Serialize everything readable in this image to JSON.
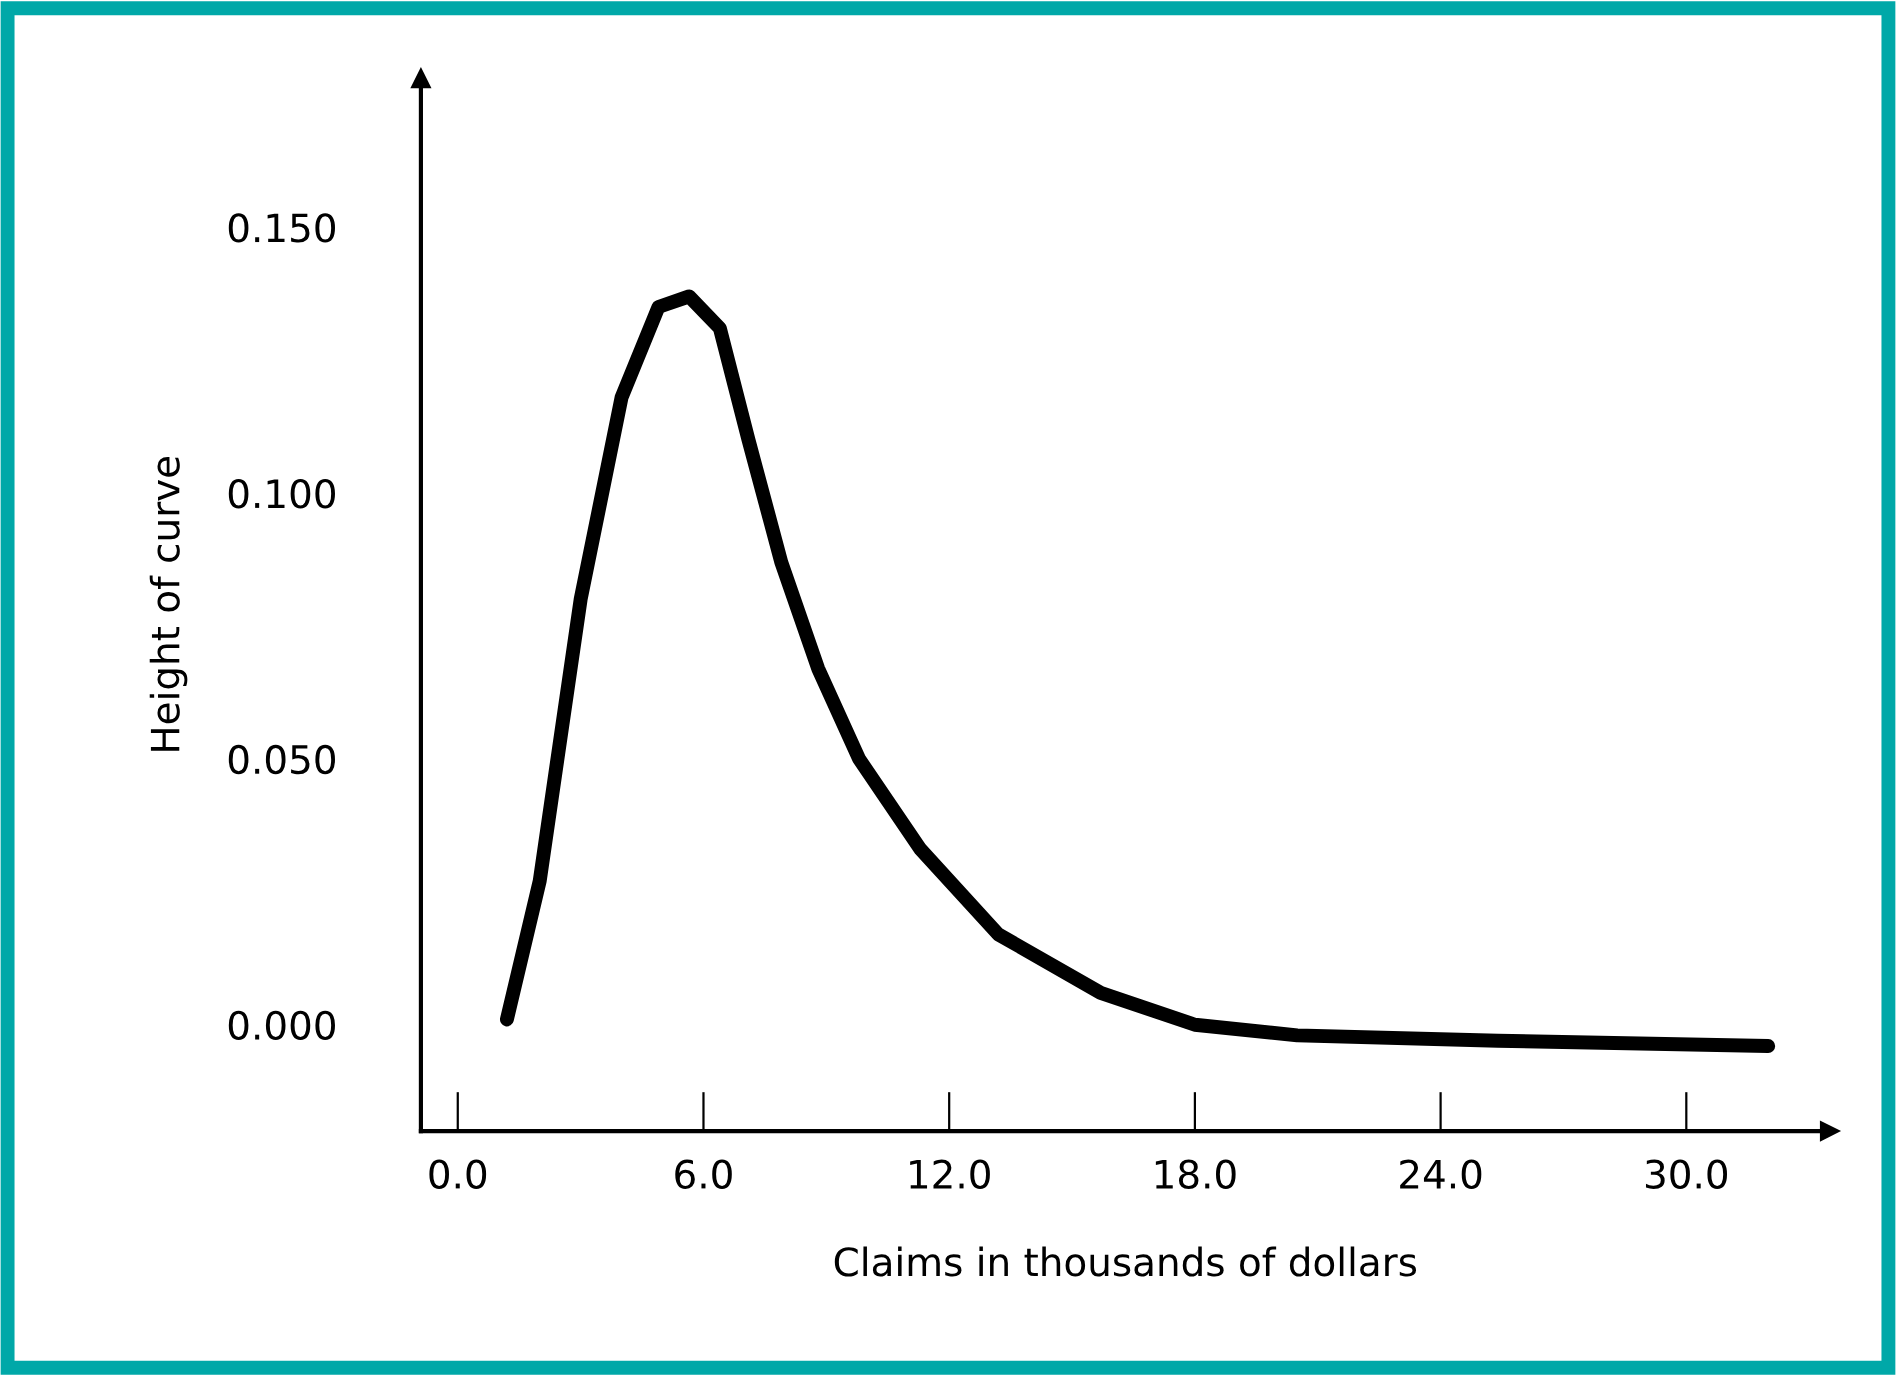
{
  "chart_data": {
    "type": "line",
    "xlabel": "Claims in thousands of dollars",
    "ylabel": "Height of curve",
    "xlim": [
      -0.9,
      33.5
    ],
    "ylim": [
      -0.02,
      0.178
    ],
    "xticks": [
      {
        "value": 0,
        "label": "0.0"
      },
      {
        "value": 6,
        "label": "6.0"
      },
      {
        "value": 12,
        "label": "12.0"
      },
      {
        "value": 18,
        "label": "18.0"
      },
      {
        "value": 24,
        "label": "24.0"
      },
      {
        "value": 30,
        "label": "30.0"
      }
    ],
    "yticks": [
      {
        "value": 0,
        "label": "0.000"
      },
      {
        "value": 0.05,
        "label": "0.050"
      },
      {
        "value": 0.1,
        "label": "0.100"
      },
      {
        "value": 0.15,
        "label": "0.150"
      }
    ],
    "grid": false,
    "legend": false,
    "marker": "none",
    "line_style": "solid",
    "series": [
      {
        "color": "#000000",
        "x": [
          1.2,
          2.0,
          3.0,
          4.0,
          4.9,
          5.65,
          6.4,
          7.1,
          7.9,
          8.8,
          9.8,
          11.3,
          13.2,
          15.7,
          18.0,
          20.5,
          25.4,
          32.0
        ],
        "values": [
          0.001,
          0.027,
          0.08,
          0.118,
          0.135,
          0.137,
          0.131,
          0.11,
          0.087,
          0.067,
          0.05,
          0.033,
          0.017,
          0.006,
          0.0,
          -0.002,
          -0.003,
          -0.004
        ]
      }
    ]
  }
}
